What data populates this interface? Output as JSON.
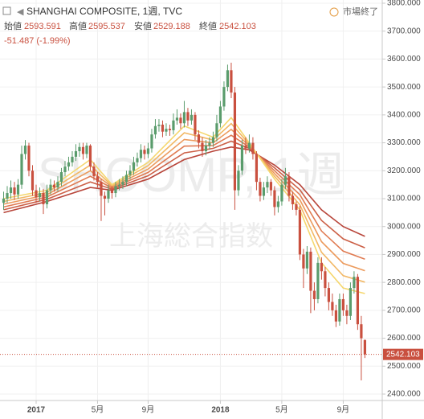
{
  "chart_data": {
    "type": "candlestick",
    "title": "SHANGHAI COMPOSITE, 1週, TVC",
    "status": "市場終了",
    "ohlc_labels": {
      "open": "始値",
      "high": "高値",
      "low": "安値",
      "close": "終値"
    },
    "change_label": "-51.487 (-1.99%)",
    "watermark": [
      "SHCOMP, 1週",
      "上海総合指数"
    ],
    "up_color": "#5a9c6c",
    "down_color": "#c9503f",
    "open": [
      3085,
      3100,
      3120,
      3140,
      3115,
      3150,
      3260,
      3290,
      3200,
      3130,
      3105,
      3120,
      3080,
      3130,
      3150,
      3140,
      3160,
      3195,
      3215,
      3230,
      3250,
      3270,
      3285,
      3260,
      3290,
      3215,
      3180,
      3160,
      3110,
      3100,
      3130,
      3120,
      3145,
      3150,
      3160,
      3185,
      3200,
      3230,
      3245,
      3275,
      3260,
      3280,
      3330,
      3360,
      3365,
      3340,
      3350,
      3345,
      3380,
      3390,
      3370,
      3410,
      3380,
      3400,
      3330,
      3300,
      3270,
      3290,
      3300,
      3320,
      3370,
      3430,
      3500,
      3560,
      3480,
      3130,
      3200,
      3290,
      3280,
      3300,
      3260,
      3160,
      3110,
      3140,
      3160,
      3130,
      3070,
      3090,
      3150,
      3180,
      3110,
      3080,
      3060,
      2900,
      2850,
      2910,
      2770,
      2740,
      2870,
      2840,
      2780,
      2730,
      2700,
      2660,
      2740,
      2700,
      2680,
      2780,
      2820,
      2650,
      2593.591
    ],
    "high": [
      3125,
      3145,
      3165,
      3160,
      3170,
      3290,
      3310,
      3300,
      3220,
      3150,
      3140,
      3135,
      3150,
      3170,
      3165,
      3180,
      3210,
      3235,
      3250,
      3270,
      3295,
      3300,
      3300,
      3300,
      3295,
      3230,
      3195,
      3170,
      3125,
      3150,
      3145,
      3160,
      3170,
      3180,
      3200,
      3220,
      3250,
      3265,
      3295,
      3290,
      3300,
      3350,
      3385,
      3385,
      3380,
      3370,
      3365,
      3405,
      3420,
      3405,
      3450,
      3425,
      3420,
      3410,
      3345,
      3320,
      3310,
      3320,
      3340,
      3400,
      3450,
      3520,
      3580,
      3587,
      3500,
      3220,
      3310,
      3320,
      3330,
      3320,
      3270,
      3175,
      3160,
      3180,
      3170,
      3145,
      3110,
      3170,
      3210,
      3195,
      3125,
      3090,
      3075,
      2920,
      2930,
      2925,
      2800,
      2890,
      2890,
      2855,
      2800,
      2760,
      2720,
      2760,
      2760,
      2720,
      2800,
      2840,
      2830,
      2680,
      2595.537
    ],
    "low": [
      3060,
      3085,
      3100,
      3095,
      3100,
      3135,
      3240,
      3180,
      3110,
      3085,
      3090,
      3045,
      3065,
      3115,
      3125,
      3125,
      3145,
      3180,
      3200,
      3215,
      3235,
      3250,
      3240,
      3245,
      3200,
      3165,
      3140,
      3020,
      3040,
      3085,
      3100,
      3105,
      3130,
      3135,
      3145,
      3170,
      3185,
      3215,
      3230,
      3240,
      3245,
      3265,
      3315,
      3340,
      3320,
      3325,
      3325,
      3330,
      3365,
      3350,
      3355,
      3360,
      3365,
      3310,
      3280,
      3250,
      3255,
      3275,
      3285,
      3305,
      3355,
      3415,
      3485,
      3460,
      3060,
      3110,
      3185,
      3260,
      3265,
      3240,
      3130,
      3090,
      3095,
      3120,
      3110,
      3040,
      3050,
      3075,
      3135,
      3090,
      3060,
      3040,
      2880,
      2780,
      2830,
      2690,
      2700,
      2725,
      2810,
      2750,
      2700,
      2680,
      2640,
      2645,
      2680,
      2650,
      2665,
      2760,
      2630,
      2449,
      2529.188
    ],
    "close": [
      3100,
      3120,
      3140,
      3115,
      3150,
      3260,
      3290,
      3200,
      3130,
      3105,
      3120,
      3080,
      3130,
      3150,
      3140,
      3160,
      3195,
      3215,
      3230,
      3250,
      3270,
      3285,
      3260,
      3290,
      3215,
      3180,
      3160,
      3110,
      3100,
      3130,
      3120,
      3145,
      3150,
      3160,
      3185,
      3200,
      3230,
      3245,
      3275,
      3260,
      3280,
      3330,
      3360,
      3365,
      3340,
      3350,
      3345,
      3380,
      3390,
      3370,
      3410,
      3380,
      3400,
      3330,
      3300,
      3270,
      3290,
      3300,
      3320,
      3370,
      3430,
      3500,
      3560,
      3480,
      3130,
      3200,
      3290,
      3280,
      3300,
      3260,
      3160,
      3110,
      3140,
      3160,
      3130,
      3070,
      3090,
      3150,
      3180,
      3110,
      3080,
      3060,
      2900,
      2850,
      2910,
      2770,
      2740,
      2870,
      2840,
      2780,
      2730,
      2700,
      2660,
      2740,
      2700,
      2680,
      2780,
      2820,
      2650,
      2600,
      2542.103
    ],
    "ribbon_x": [
      0,
      12,
      24,
      30,
      40,
      50,
      58,
      63,
      68,
      75,
      82,
      88,
      94,
      100
    ],
    "ribbons": [
      {
        "color": "#f5d76e",
        "values": [
          3100,
          3130,
          3240,
          3150,
          3230,
          3360,
          3320,
          3390,
          3300,
          3170,
          3060,
          2870,
          2780,
          2760
        ]
      },
      {
        "color": "#f2b865",
        "values": [
          3090,
          3122,
          3220,
          3146,
          3218,
          3336,
          3310,
          3369,
          3295,
          3180,
          3078,
          2908,
          2824,
          2801
        ]
      },
      {
        "color": "#ec9a5c",
        "values": [
          3080,
          3114,
          3200,
          3142,
          3206,
          3312,
          3300,
          3348,
          3290,
          3190,
          3096,
          2946,
          2868,
          2842
        ]
      },
      {
        "color": "#e07b52",
        "values": [
          3070,
          3106,
          3180,
          3138,
          3194,
          3288,
          3290,
          3327,
          3285,
          3200,
          3114,
          2984,
          2912,
          2883
        ]
      },
      {
        "color": "#cc6047",
        "values": [
          3060,
          3098,
          3160,
          3134,
          3182,
          3264,
          3280,
          3306,
          3280,
          3210,
          3132,
          3022,
          2956,
          2924
        ]
      },
      {
        "color": "#b8453a",
        "values": [
          3050,
          3090,
          3140,
          3130,
          3170,
          3240,
          3270,
          3285,
          3275,
          3220,
          3150,
          3060,
          3000,
          2965
        ]
      }
    ],
    "xlim": [
      -1,
      104.8
    ],
    "xticks": [
      {
        "value": 9,
        "label": "2017"
      },
      {
        "value": 26,
        "label": "5月"
      },
      {
        "value": 40,
        "label": "9月"
      },
      {
        "value": 60,
        "label": "2018"
      },
      {
        "value": 77,
        "label": "5月"
      },
      {
        "value": 94,
        "label": "9月"
      }
    ],
    "ylim": [
      2400,
      3800
    ],
    "yticks": [
      {
        "value": 2400,
        "label": "2400.000"
      },
      {
        "value": 2500,
        "label": "2500.000"
      },
      {
        "value": 2600,
        "label": "2600.000"
      },
      {
        "value": 2700,
        "label": "2700.000"
      },
      {
        "value": 2800,
        "label": "2800.000"
      },
      {
        "value": 2900,
        "label": "2900.000"
      },
      {
        "value": 3000,
        "label": "3000.000"
      },
      {
        "value": 3100,
        "label": "3100.000"
      },
      {
        "value": 3200,
        "label": "3200.000"
      },
      {
        "value": 3300,
        "label": "3300.000"
      },
      {
        "value": 3400,
        "label": "3400.000"
      },
      {
        "value": 3500,
        "label": "3500.000"
      },
      {
        "value": 3600,
        "label": "3600.000"
      },
      {
        "value": 3700,
        "label": "3700.000"
      },
      {
        "value": 3800,
        "label": "3800.000"
      }
    ],
    "grid": true
  }
}
